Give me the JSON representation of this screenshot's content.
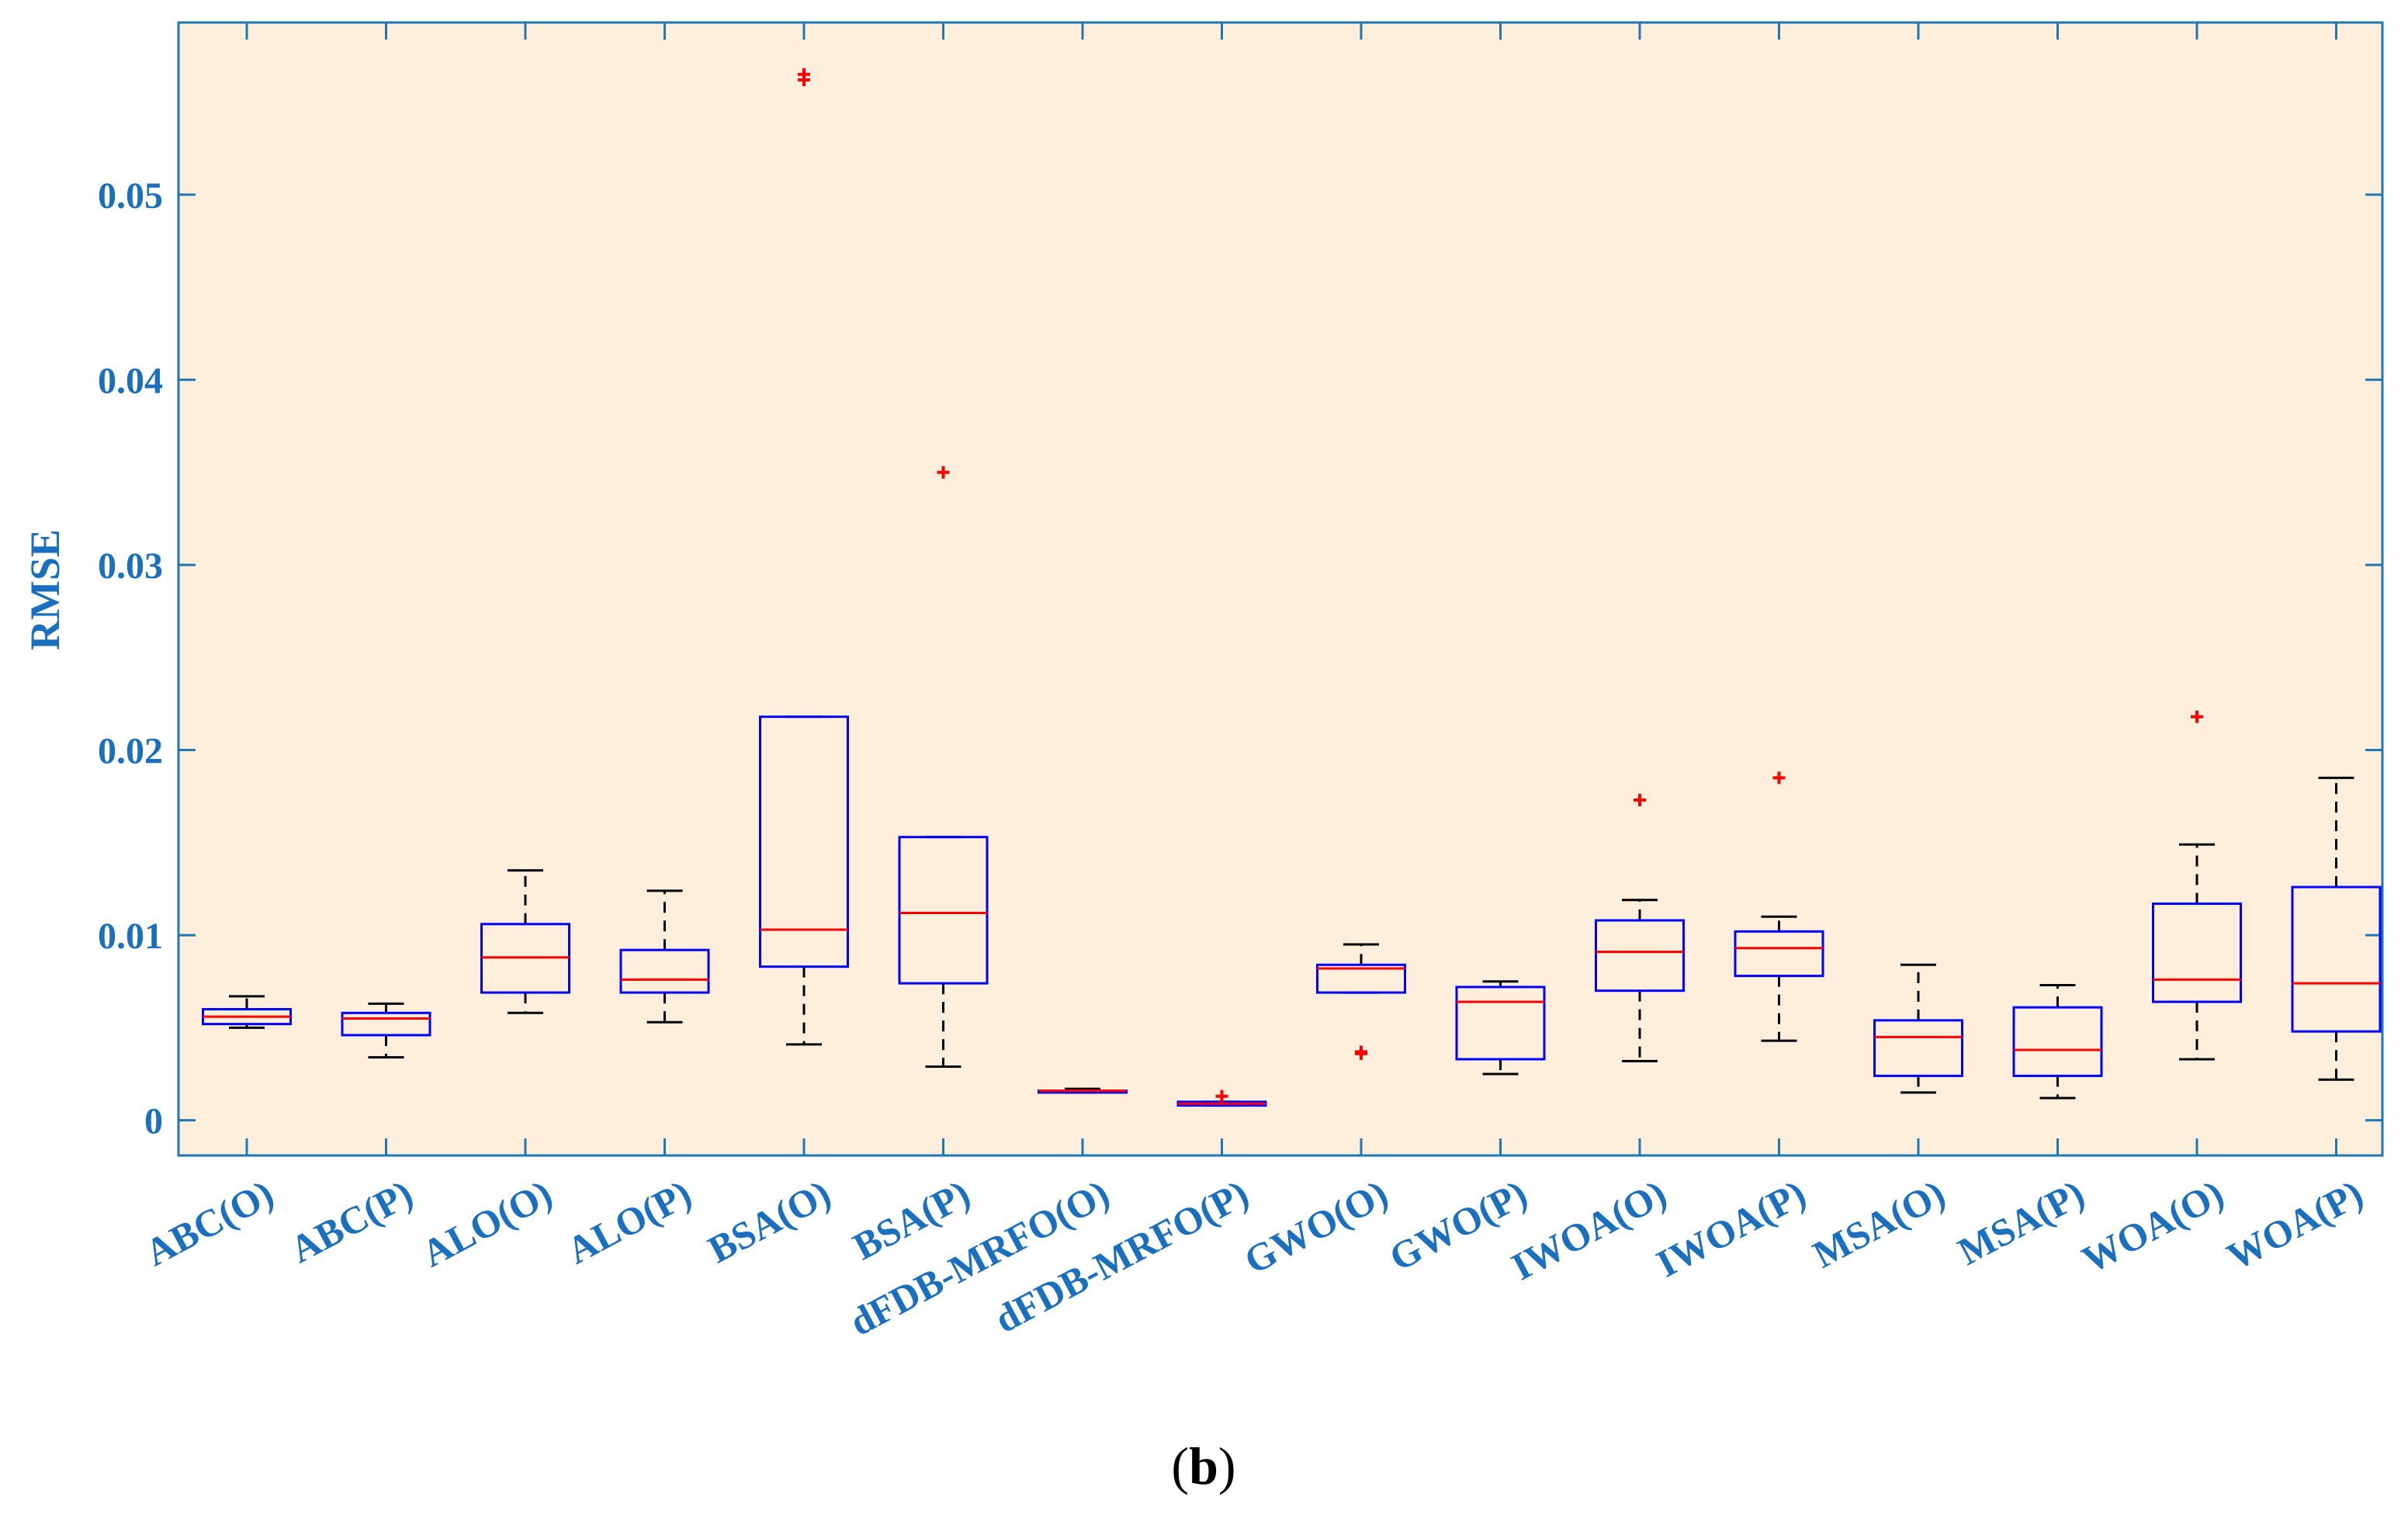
{
  "chart_data": {
    "type": "box",
    "ylabel": "RMSE",
    "xlabel": "",
    "title": "",
    "ylim": [
      -0.0019,
      0.0593
    ],
    "yticks": [
      0,
      0.01,
      0.02,
      0.03,
      0.04,
      0.05
    ],
    "ytick_labels": [
      "0",
      "0.01",
      "0.02",
      "0.03",
      "0.04",
      "0.05"
    ],
    "grid": false,
    "categories": [
      "ABC(O)",
      "ABC(P)",
      "ALO(O)",
      "ALO(P)",
      "BSA(O)",
      "BSA(P)",
      "dFDB-MRFO(O)",
      "dFDB-MRFO(P)",
      "GWO(O)",
      "GWO(P)",
      "IWOA(O)",
      "IWOA(P)",
      "MSA(O)",
      "MSA(P)",
      "WOA(O)",
      "WOA(P)"
    ],
    "boxes": [
      {
        "label": "ABC(O)",
        "whisker_low": 0.005,
        "q1": 0.0052,
        "median": 0.0056,
        "q3": 0.006,
        "whisker_high": 0.0067,
        "outliers": []
      },
      {
        "label": "ABC(P)",
        "whisker_low": 0.0034,
        "q1": 0.0046,
        "median": 0.0055,
        "q3": 0.0058,
        "whisker_high": 0.0063,
        "outliers": []
      },
      {
        "label": "ALO(O)",
        "whisker_low": 0.0058,
        "q1": 0.0069,
        "median": 0.0088,
        "q3": 0.0106,
        "whisker_high": 0.0135,
        "outliers": []
      },
      {
        "label": "ALO(P)",
        "whisker_low": 0.0053,
        "q1": 0.0069,
        "median": 0.0076,
        "q3": 0.0092,
        "whisker_high": 0.0124,
        "outliers": []
      },
      {
        "label": "BSA(O)",
        "whisker_low": 0.0041,
        "q1": 0.0083,
        "median": 0.0103,
        "q3": 0.0218,
        "whisker_high": 0.0218,
        "outliers": [
          0.0562,
          0.0565
        ]
      },
      {
        "label": "BSA(P)",
        "whisker_low": 0.0029,
        "q1": 0.0074,
        "median": 0.0112,
        "q3": 0.0153,
        "whisker_high": 0.0153,
        "outliers": [
          0.035
        ]
      },
      {
        "label": "dFDB-MRFO(O)",
        "whisker_low": 0.0015,
        "q1": 0.0015,
        "median": 0.0016,
        "q3": 0.0016,
        "whisker_high": 0.0017,
        "outliers": []
      },
      {
        "label": "dFDB-MRFO(P)",
        "whisker_low": 0.0008,
        "q1": 0.0008,
        "median": 0.0009,
        "q3": 0.001,
        "whisker_high": 0.001,
        "outliers": [
          0.0013
        ]
      },
      {
        "label": "GWO(O)",
        "whisker_low": 0.0069,
        "q1": 0.0069,
        "median": 0.0082,
        "q3": 0.0084,
        "whisker_high": 0.0095,
        "outliers": [
          0.0036,
          0.0037
        ]
      },
      {
        "label": "GWO(P)",
        "whisker_low": 0.0025,
        "q1": 0.0033,
        "median": 0.0064,
        "q3": 0.0072,
        "whisker_high": 0.0075,
        "outliers": []
      },
      {
        "label": "IWOA(O)",
        "whisker_low": 0.0032,
        "q1": 0.007,
        "median": 0.0091,
        "q3": 0.0108,
        "whisker_high": 0.0119,
        "outliers": [
          0.0173
        ]
      },
      {
        "label": "IWOA(P)",
        "whisker_low": 0.0043,
        "q1": 0.0078,
        "median": 0.0093,
        "q3": 0.0102,
        "whisker_high": 0.011,
        "outliers": [
          0.0185
        ]
      },
      {
        "label": "MSA(O)",
        "whisker_low": 0.0015,
        "q1": 0.0024,
        "median": 0.0045,
        "q3": 0.0054,
        "whisker_high": 0.0084,
        "outliers": []
      },
      {
        "label": "MSA(P)",
        "whisker_low": 0.0012,
        "q1": 0.0024,
        "median": 0.0038,
        "q3": 0.0061,
        "whisker_high": 0.0073,
        "outliers": []
      },
      {
        "label": "WOA(O)",
        "whisker_low": 0.0033,
        "q1": 0.0064,
        "median": 0.0076,
        "q3": 0.0117,
        "whisker_high": 0.0149,
        "outliers": [
          0.0218
        ]
      },
      {
        "label": "WOA(P)",
        "whisker_low": 0.0022,
        "q1": 0.0048,
        "median": 0.0074,
        "q3": 0.0126,
        "whisker_high": 0.0185,
        "outliers": []
      }
    ],
    "colors": {
      "plot_background": "#fdefdc",
      "axis": "#1f77b4",
      "tick_label": "#1a6fbf",
      "box": "#0000ff",
      "median": "#ff0000",
      "whisker": "#000000",
      "outlier": "#ff0000"
    }
  },
  "caption": {
    "open": "(",
    "letter": "b",
    "close": ")"
  }
}
